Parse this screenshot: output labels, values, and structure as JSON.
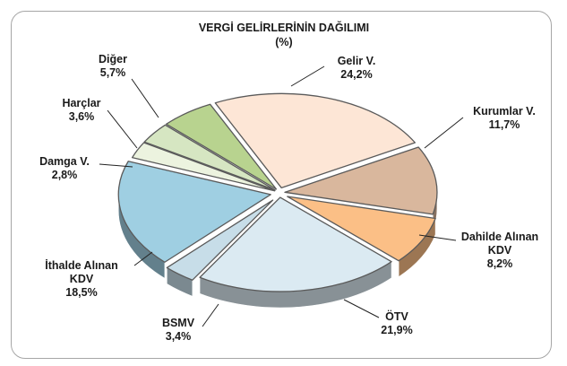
{
  "chart_data": {
    "type": "pie",
    "title": "VERGİ GELİRLERİNİN DAĞILIMI",
    "subtitle": "(%)",
    "unit": "%",
    "slices": [
      {
        "label": "Gelir V.",
        "label_lines": [
          "Gelir V."
        ],
        "value_text": "24,2%",
        "value": 24.2,
        "color": "#fde6d6"
      },
      {
        "label": "Kurumlar V.",
        "label_lines": [
          "Kurumlar V."
        ],
        "value_text": "11,7%",
        "value": 11.7,
        "color": "#d9b79d"
      },
      {
        "label": "Dahilde Alınan KDV",
        "label_lines": [
          "Dahilde Alınan",
          "KDV"
        ],
        "value_text": "8,2%",
        "value": 8.2,
        "color": "#fbbf86"
      },
      {
        "label": "ÖTV",
        "label_lines": [
          "ÖTV"
        ],
        "value_text": "21,9%",
        "value": 21.9,
        "color": "#dbeaf2"
      },
      {
        "label": "BSMV",
        "label_lines": [
          "BSMV"
        ],
        "value_text": "3,4%",
        "value": 3.4,
        "color": "#c7dde8"
      },
      {
        "label": "İthalde Alınan KDV",
        "label_lines": [
          "İthalde Alınan",
          "KDV"
        ],
        "value_text": "18,5%",
        "value": 18.5,
        "color": "#9fcfe2"
      },
      {
        "label": "Damga V.",
        "label_lines": [
          "Damga V."
        ],
        "value_text": "2,8%",
        "value": 2.8,
        "color": "#ecf3df"
      },
      {
        "label": "Harçlar",
        "label_lines": [
          "Harçlar"
        ],
        "value_text": "3,6%",
        "value": 3.6,
        "color": "#d6e6c2"
      },
      {
        "label": "Diğer",
        "label_lines": [
          "Diğer"
        ],
        "value_text": "5,7%",
        "value": 5.7,
        "color": "#b8d38f"
      }
    ],
    "legend": "none",
    "labels": "outside with leader lines",
    "style": "3d exploded"
  }
}
